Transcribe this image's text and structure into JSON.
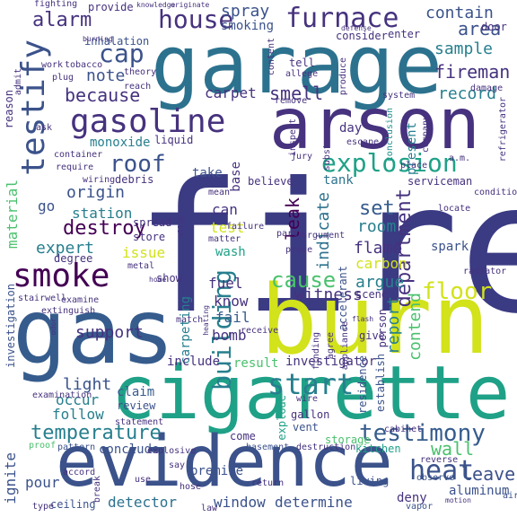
{
  "palette": {
    "c1": "#440154",
    "c2": "#46327e",
    "c3": "#365c8d",
    "c4": "#277f8e",
    "c5": "#1fa187",
    "c6": "#4ac16d",
    "c7": "#a0da39",
    "c8": "#d2e21b",
    "c9": "#2c728e",
    "c10": "#3b528b",
    "c11": "#21918c",
    "c12": "#5ec962"
  },
  "words": {
    "fire": "fire",
    "garage": "garage",
    "arson": "arson",
    "gas": "gas",
    "burn": "burn",
    "cigarette": "cigarette",
    "evidence": "evidence",
    "smoke": "smoke",
    "gasoline": "gasoline",
    "testify": "testify",
    "house": "house",
    "furnace": "furnace",
    "explosion": "explosion",
    "building": "building",
    "start": "start",
    "testimony": "testimony",
    "floor": "floor",
    "cause": "cause",
    "roof": "roof",
    "heat": "heat",
    "wall": "wall",
    "temperature": "temperature",
    "alarm": "alarm",
    "cap": "cap",
    "fireman": "fireman",
    "spray": "spray",
    "smoking": "smoking",
    "contain": "contain",
    "area": "area",
    "sample": "sample",
    "because": "because",
    "note": "note",
    "carpet": "carpet",
    "smell": "smell",
    "record": "record",
    "department": "department",
    "destroy": "destroy",
    "origin": "origin",
    "monoxide": "monoxide",
    "station": "station",
    "expert": "expert",
    "test": "test",
    "leak": "leak",
    "set": "set",
    "room": "room",
    "indicate": "indicate",
    "flame": "flame",
    "carbon": "carbon",
    "argue": "argue",
    "witness": "witness",
    "report": "report",
    "contend": "contend",
    "fuel": "fuel",
    "know": "know",
    "fail": "fail",
    "bomb": "bomb",
    "carpeting": "carpeting",
    "support": "support",
    "light": "light",
    "include": "include",
    "result": "result",
    "investigator": "investigator",
    "occur": "occur",
    "follow": "follow",
    "claim": "claim",
    "review": "review",
    "detector": "detector",
    "window": "window",
    "determine": "determine",
    "leave": "leave",
    "ignite": "ignite",
    "pour": "pour",
    "ceiling": "ceiling",
    "conclude": "conclude",
    "premise": "premise",
    "kitchen": "kitchen",
    "aluminum": "aluminum",
    "material": "material",
    "go": "go",
    "issue": "issue",
    "wash": "wash",
    "can": "can",
    "take": "take",
    "base": "base",
    "tank": "tank",
    "believe": "believe",
    "day": "day",
    "present": "present",
    "accelerant": "accelerant",
    "spark": "spark",
    "scene": "scene",
    "give": "give",
    "residence": "residence",
    "establish": "establish",
    "storage": "storage",
    "gallon": "gallon",
    "vent": "vent",
    "explode": "explode",
    "cabinet": "cabinet",
    "statement": "statement",
    "pattern": "pattern",
    "proof": "proof",
    "come": "come",
    "basement": "basement",
    "destruction": "destruction",
    "living": "living",
    "deny": "deny",
    "vapor": "vapor",
    "reverse": "reverse",
    "observe": "observe",
    "air": "air",
    "inhalation": "inhalation",
    "consider": "consider",
    "enter": "enter",
    "door": "door",
    "damage": "damage",
    "tell": "tell",
    "allege": "allege",
    "produce": "produce",
    "system": "system",
    "conclusion": "conclusion",
    "company": "company",
    "refrigerator": "refrigerator",
    "inspect": "inspect",
    "substance": "substance",
    "jury": "jury",
    "escape": "escape",
    "place": "place",
    "locate": "locate",
    "serviceman": "serviceman",
    "a.m.": "a.m.",
    "condition": "condition",
    "mean": "mean",
    "failure": "failure",
    "party": "party",
    "argument": "argument",
    "prove": "prove",
    "matter": "matter",
    "liquid": "liquid",
    "store": "store",
    "spread": "spread",
    "degree": "degree",
    "metal": "metal",
    "radiator": "radiator",
    "investigation": "investigation",
    "stairwell": "stairwell",
    "examine": "examine",
    "show": "show",
    "match": "match",
    "receive": "receive",
    "finding": "finding",
    "agree": "agree",
    "appliance": "appliance",
    "person": "person",
    "debris": "debris",
    "wiring": "wiring",
    "container": "container",
    "require": "require",
    "ask": "ask",
    "reason": "reason",
    "admit": "admit",
    "work": "work",
    "tobacco": "tobacco",
    "theory": "theory",
    "plug": "plug",
    "reach": "reach",
    "fighting": "fighting",
    "provide": "provide",
    "knowledge": "knowledge",
    "originate": "originate",
    "burning": "burning",
    "defense": "defense",
    "content": "content",
    "remove": "remove",
    "examination": "examination",
    "extinguish": "extinguish",
    "break": "break",
    "hose": "hose",
    "use": "use",
    "say": "say",
    "return": "return",
    "type": "type",
    "law": "law",
    "accord": "accord",
    "motion": "motion",
    "explosive": "explosive",
    "wire": "wire",
    "home": "home",
    "allow": "allow",
    "heating": "heating",
    "flash": "flash",
    "odor": "odor"
  }
}
